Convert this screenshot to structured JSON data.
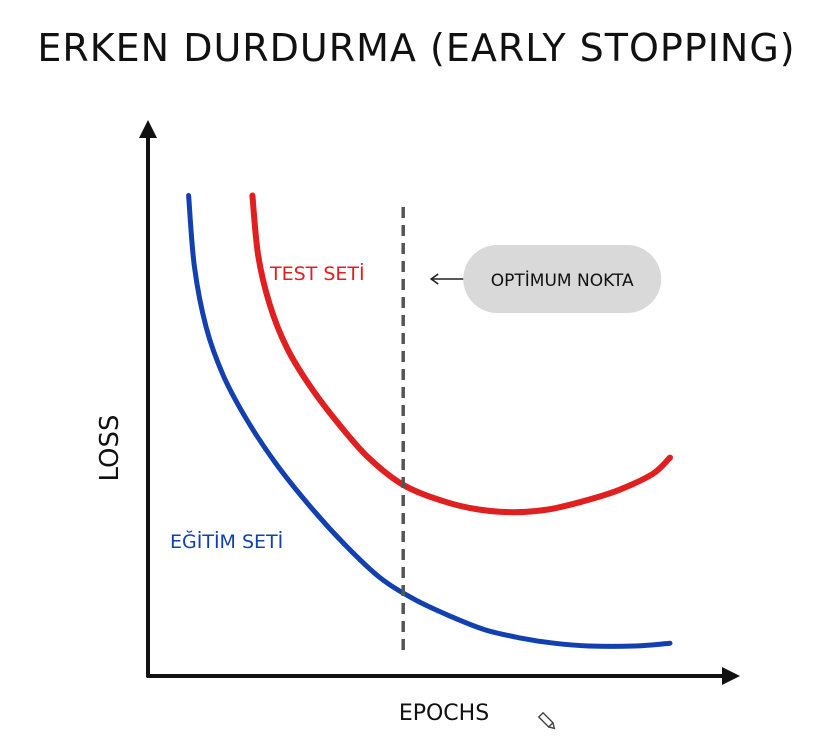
{
  "chart_data": {
    "type": "line",
    "title": "ERKEN DURDURMA (EARLY STOPPING)",
    "xlabel": "EPOCHS",
    "ylabel": "LOSS",
    "xlim": [
      0,
      100
    ],
    "ylim": [
      0,
      100
    ],
    "grid": false,
    "series": [
      {
        "name": "TEST SETİ",
        "color": "#e02020",
        "points": [
          [
            18,
            88
          ],
          [
            19,
            77
          ],
          [
            21,
            68
          ],
          [
            24,
            60
          ],
          [
            28,
            53
          ],
          [
            33,
            46
          ],
          [
            38,
            40
          ],
          [
            44,
            35
          ],
          [
            51,
            32
          ],
          [
            57,
            30.5
          ],
          [
            63,
            30
          ],
          [
            69,
            30.5
          ],
          [
            75,
            32
          ],
          [
            81,
            34
          ],
          [
            87,
            37
          ],
          [
            90,
            40
          ]
        ]
      },
      {
        "name": "EĞİTİM SETİ",
        "color": "#1340b0",
        "points": [
          [
            7,
            88
          ],
          [
            8,
            75
          ],
          [
            10,
            64
          ],
          [
            13,
            55
          ],
          [
            17,
            47
          ],
          [
            22,
            39
          ],
          [
            28,
            31
          ],
          [
            34,
            24
          ],
          [
            40,
            18
          ],
          [
            46,
            14
          ],
          [
            52,
            11
          ],
          [
            58,
            8.5
          ],
          [
            64,
            7
          ],
          [
            70,
            6
          ],
          [
            76,
            5.5
          ],
          [
            84,
            5.5
          ],
          [
            90,
            6
          ]
        ]
      }
    ],
    "annotations": [
      {
        "type": "vline",
        "x": 44,
        "label": "OPTİMUM NOKTA"
      }
    ]
  }
}
